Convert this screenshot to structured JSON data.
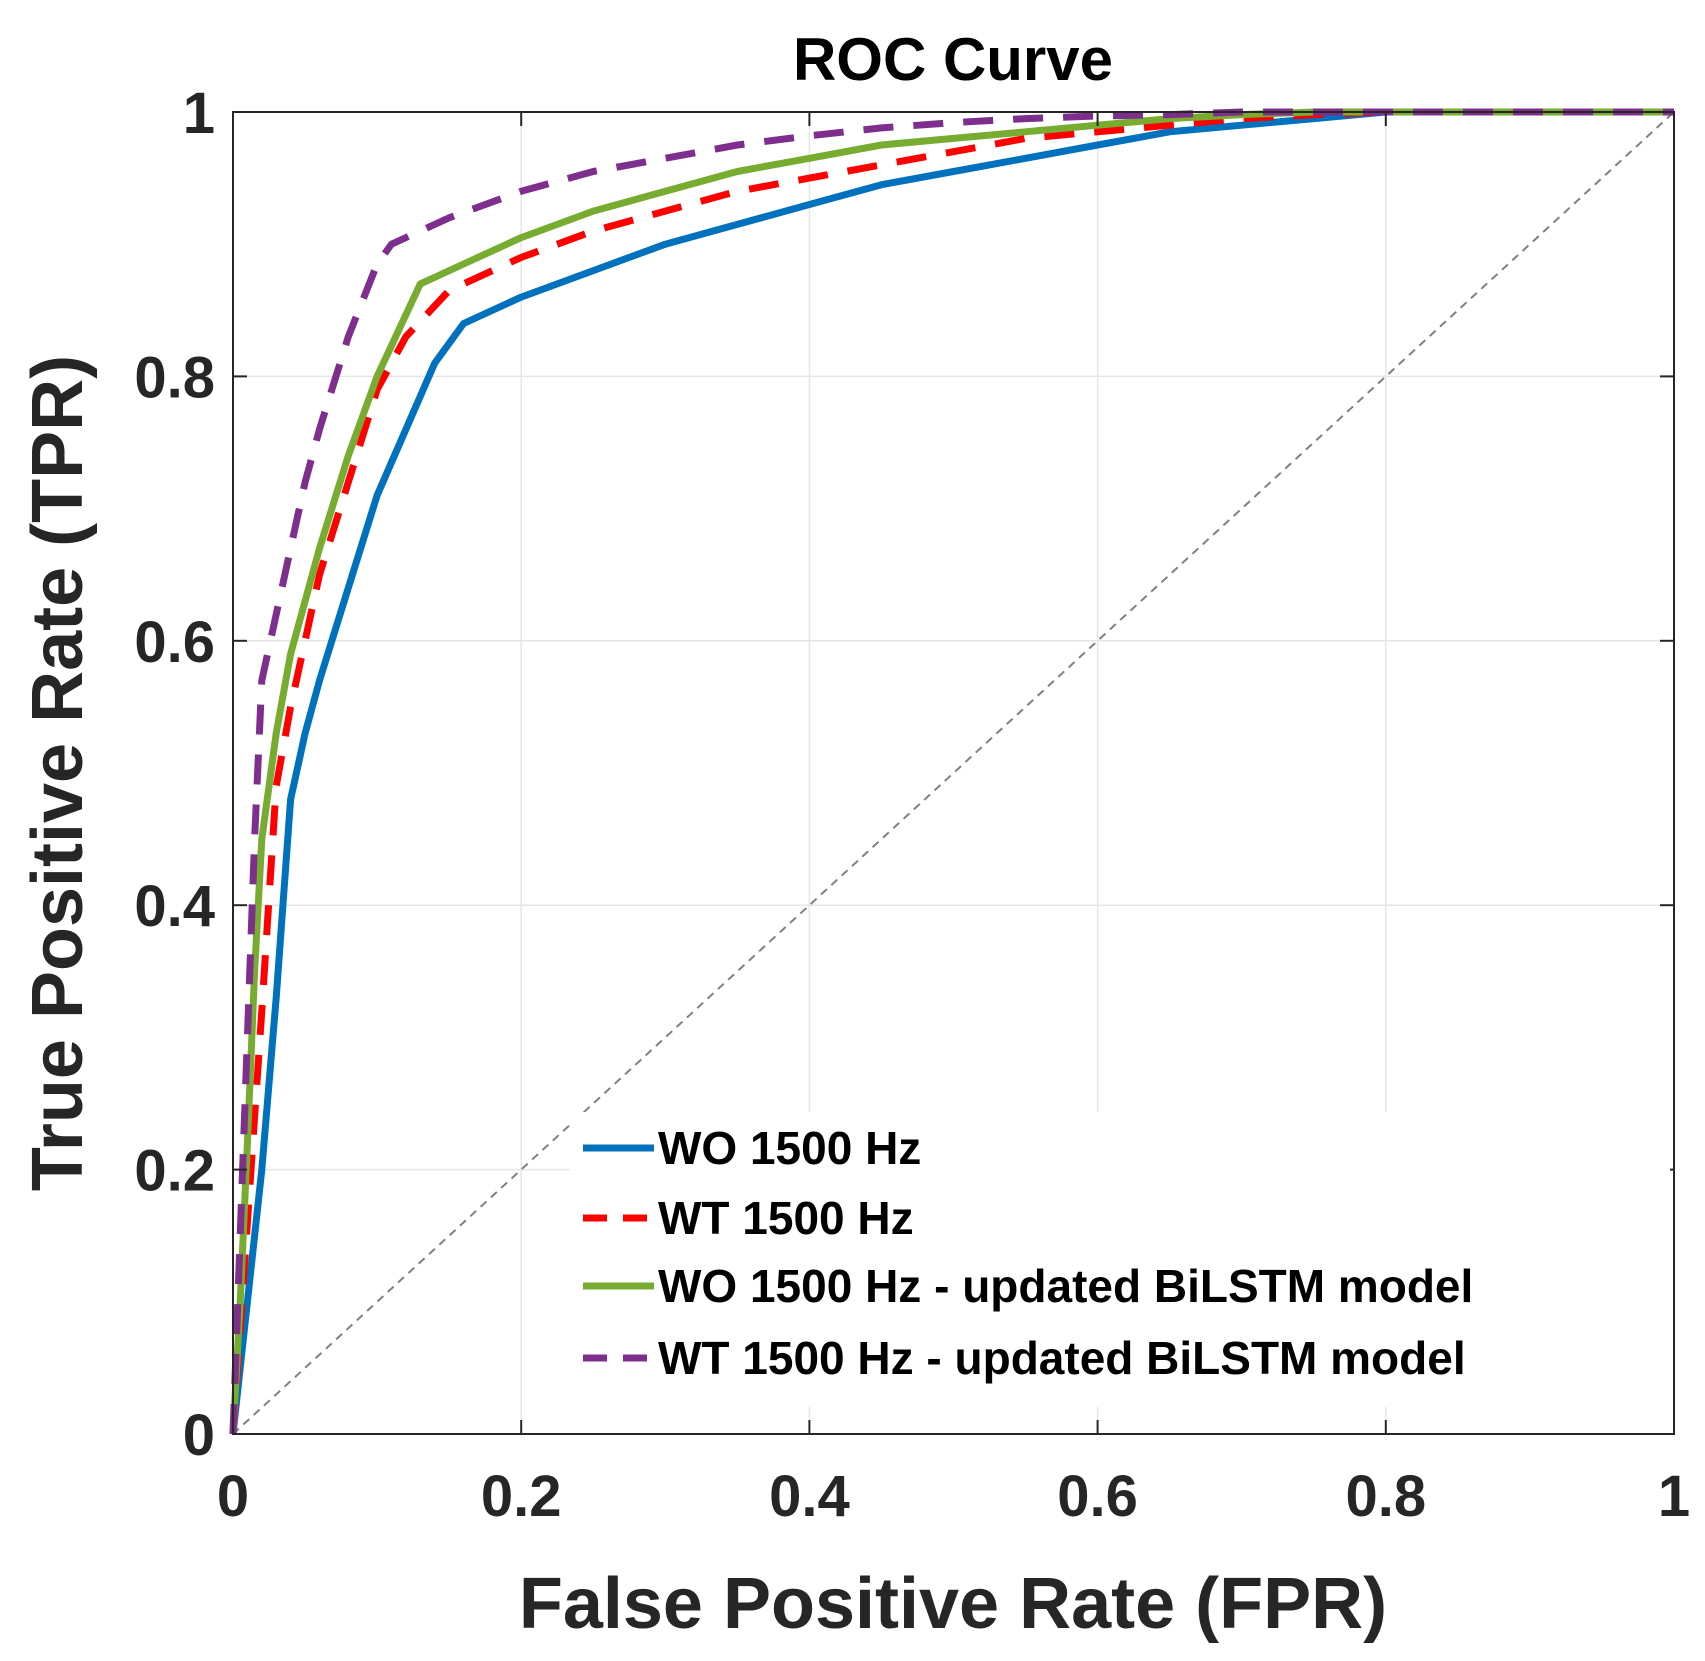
{
  "chart_data": {
    "type": "line",
    "title": "ROC Curve",
    "xlabel": "False Positive Rate (FPR)",
    "ylabel": "True Positive Rate (TPR)",
    "xlim": [
      0,
      1
    ],
    "ylim": [
      0,
      1
    ],
    "grid": true,
    "legend_position": "bottom-right",
    "x_ticks": [
      {
        "value": 0,
        "label": "0"
      },
      {
        "value": 0.2,
        "label": "0.2"
      },
      {
        "value": 0.4,
        "label": "0.4"
      },
      {
        "value": 0.6,
        "label": "0.6"
      },
      {
        "value": 0.8,
        "label": "0.8"
      },
      {
        "value": 1,
        "label": "1"
      }
    ],
    "y_ticks": [
      {
        "value": 0,
        "label": "0"
      },
      {
        "value": 0.2,
        "label": "0.2"
      },
      {
        "value": 0.4,
        "label": "0.4"
      },
      {
        "value": 0.6,
        "label": "0.6"
      },
      {
        "value": 0.8,
        "label": "0.8"
      },
      {
        "value": 1,
        "label": "1"
      }
    ],
    "reference_line": {
      "name": "chance",
      "x": [
        0,
        1
      ],
      "y": [
        0,
        1
      ],
      "color": "#808080",
      "style": "dashed"
    },
    "series": [
      {
        "name": "WO 1500 Hz",
        "color": "#0072BD",
        "style": "solid",
        "x": [
          0,
          0.005,
          0.01,
          0.02,
          0.03,
          0.04,
          0.05,
          0.06,
          0.08,
          0.1,
          0.12,
          0.14,
          0.16,
          0.2,
          0.25,
          0.3,
          0.35,
          0.4,
          0.45,
          0.5,
          0.55,
          0.6,
          0.65,
          0.7,
          0.75,
          0.8,
          0.9,
          1.0
        ],
        "y": [
          0,
          0.05,
          0.1,
          0.2,
          0.33,
          0.48,
          0.53,
          0.57,
          0.64,
          0.71,
          0.76,
          0.81,
          0.84,
          0.86,
          0.88,
          0.9,
          0.915,
          0.93,
          0.945,
          0.955,
          0.965,
          0.975,
          0.985,
          0.99,
          0.995,
          1.0,
          1.0,
          1.0
        ]
      },
      {
        "name": "WT 1500 Hz",
        "color": "#FF0000",
        "style": "dashed",
        "x": [
          0,
          0.005,
          0.01,
          0.02,
          0.03,
          0.04,
          0.05,
          0.06,
          0.08,
          0.1,
          0.12,
          0.15,
          0.2,
          0.25,
          0.3,
          0.35,
          0.4,
          0.45,
          0.5,
          0.55,
          0.6,
          0.65,
          0.7,
          0.75,
          0.8,
          0.9,
          1.0
        ],
        "y": [
          0,
          0.08,
          0.16,
          0.32,
          0.49,
          0.55,
          0.6,
          0.65,
          0.72,
          0.79,
          0.83,
          0.865,
          0.89,
          0.91,
          0.925,
          0.94,
          0.95,
          0.96,
          0.97,
          0.98,
          0.985,
          0.99,
          0.995,
          0.998,
          1.0,
          1.0,
          1.0
        ]
      },
      {
        "name": "WO 1500 Hz - updated BiLSTM model",
        "color": "#77AC30",
        "style": "solid",
        "x": [
          0,
          0.005,
          0.01,
          0.015,
          0.02,
          0.03,
          0.04,
          0.05,
          0.06,
          0.08,
          0.1,
          0.13,
          0.16,
          0.2,
          0.25,
          0.3,
          0.35,
          0.4,
          0.45,
          0.5,
          0.55,
          0.6,
          0.65,
          0.7,
          0.75,
          0.8,
          0.9,
          1.0
        ],
        "y": [
          0,
          0.1,
          0.22,
          0.35,
          0.45,
          0.53,
          0.59,
          0.63,
          0.67,
          0.74,
          0.8,
          0.87,
          0.885,
          0.905,
          0.925,
          0.94,
          0.955,
          0.965,
          0.975,
          0.98,
          0.985,
          0.99,
          0.995,
          0.998,
          1.0,
          1.0,
          1.0,
          1.0
        ]
      },
      {
        "name": "WT 1500 Hz - updated BiLSTM model",
        "color": "#7E2F8E",
        "style": "dashed",
        "x": [
          0,
          0.005,
          0.01,
          0.015,
          0.02,
          0.03,
          0.04,
          0.05,
          0.06,
          0.08,
          0.1,
          0.11,
          0.15,
          0.2,
          0.25,
          0.3,
          0.35,
          0.4,
          0.45,
          0.5,
          0.55,
          0.6,
          0.65,
          0.7,
          0.8,
          0.9,
          1.0
        ],
        "y": [
          0,
          0.15,
          0.3,
          0.45,
          0.57,
          0.62,
          0.67,
          0.72,
          0.76,
          0.83,
          0.885,
          0.9,
          0.92,
          0.94,
          0.955,
          0.965,
          0.975,
          0.982,
          0.988,
          0.992,
          0.995,
          0.997,
          0.998,
          1.0,
          1.0,
          1.0,
          1.0
        ]
      }
    ]
  }
}
